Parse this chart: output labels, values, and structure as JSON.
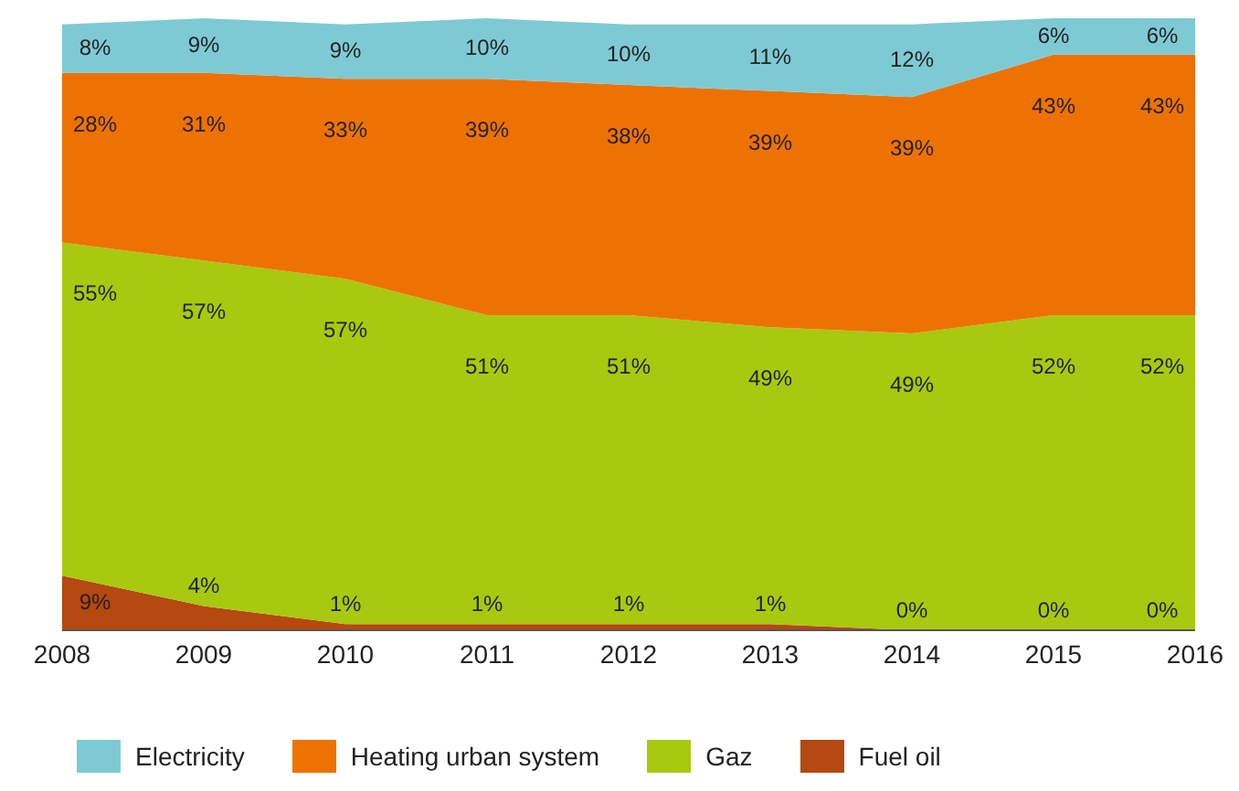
{
  "chart_data": {
    "type": "area",
    "stacked": true,
    "categories": [
      "2008",
      "2009",
      "2010",
      "2011",
      "2012",
      "2013",
      "2014",
      "2015",
      "2016"
    ],
    "series": [
      {
        "name": "Fuel oil",
        "color": "#b5490f",
        "values": [
          9,
          4,
          1,
          1,
          1,
          1,
          0,
          0,
          0
        ],
        "value_labels": [
          "9%",
          "4%",
          "1%",
          "1%",
          "1%",
          "1%",
          "0%",
          "0%",
          "0%"
        ]
      },
      {
        "name": "Gaz",
        "color": "#a8c90f",
        "values": [
          55,
          57,
          57,
          51,
          51,
          49,
          49,
          52,
          52
        ],
        "value_labels": [
          "55%",
          "57%",
          "57%",
          "51%",
          "51%",
          "49%",
          "49%",
          "52%",
          "52%"
        ]
      },
      {
        "name": "Heating urban system",
        "color": "#ee7203",
        "values": [
          28,
          31,
          33,
          39,
          38,
          39,
          39,
          43,
          43
        ],
        "value_labels": [
          "28%",
          "31%",
          "33%",
          "39%",
          "38%",
          "39%",
          "39%",
          "43%",
          "43%"
        ]
      },
      {
        "name": "Electricity",
        "color": "#7ecad4",
        "values": [
          8,
          9,
          9,
          10,
          10,
          11,
          12,
          6,
          6
        ],
        "value_labels": [
          "8%",
          "9%",
          "9%",
          "10%",
          "10%",
          "11%",
          "12%",
          "6%",
          "6%"
        ]
      }
    ],
    "legend": "bottom"
  }
}
